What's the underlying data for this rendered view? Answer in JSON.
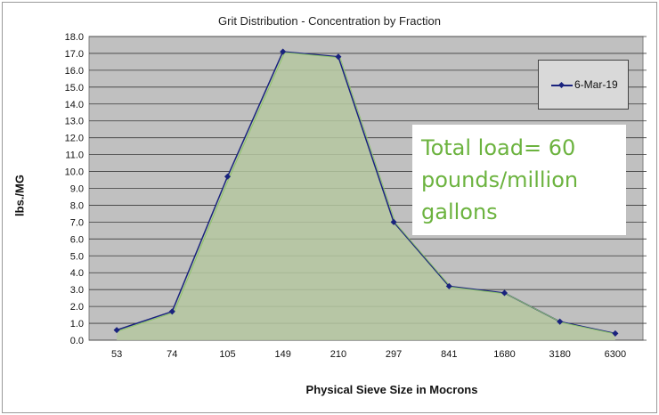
{
  "chart_data": {
    "type": "area",
    "title": "Grit Distribution - Concentration by Fraction",
    "xlabel": "Physical Sieve Size in Mocrons",
    "ylabel": "lbs./MG",
    "categories": [
      "53",
      "74",
      "105",
      "149",
      "210",
      "297",
      "841",
      "1680",
      "3180",
      "6300"
    ],
    "series": [
      {
        "name": "6-Mar-19",
        "values": [
          0.6,
          1.7,
          9.7,
          17.1,
          16.8,
          7.0,
          3.2,
          2.8,
          1.1,
          0.4
        ]
      }
    ],
    "ylim": [
      0,
      18
    ],
    "yticks": [
      "0.0",
      "1.0",
      "2.0",
      "3.0",
      "4.0",
      "5.0",
      "6.0",
      "7.0",
      "8.0",
      "9.0",
      "10.0",
      "11.0",
      "12.0",
      "13.0",
      "14.0",
      "15.0",
      "16.0",
      "17.0",
      "18.0"
    ],
    "grid": true,
    "legend": "top-right",
    "colors": {
      "line": "#1a237e",
      "fill": "#b5c7a0",
      "plot_bg": "#c0c0c0"
    },
    "annotation": "Total load= 60 pounds/million gallons"
  }
}
